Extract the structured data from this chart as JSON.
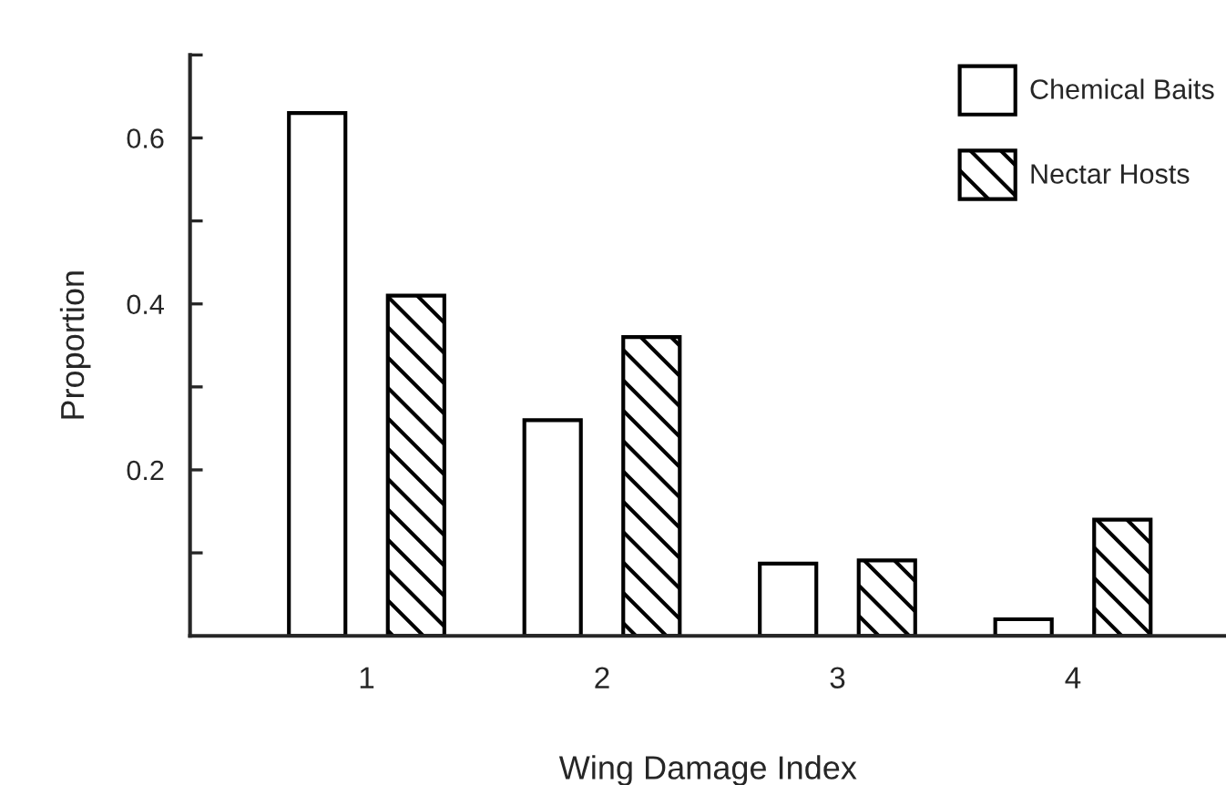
{
  "chart_data": {
    "type": "bar",
    "xlabel": "Wing Damage Index",
    "ylabel": "Proportion",
    "categories": [
      "1",
      "2",
      "3",
      "4"
    ],
    "series": [
      {
        "name": "Chemical Baits",
        "color": "#ffffff",
        "values": [
          0.63,
          0.26,
          0.087,
          0.02
        ]
      },
      {
        "name": "Nectar Hosts",
        "color": "#000000",
        "values": [
          0.41,
          0.36,
          0.091,
          0.14
        ]
      }
    ],
    "ylim": [
      0,
      0.7
    ],
    "yticks": [
      {
        "value": 0.1,
        "label": null
      },
      0.2,
      {
        "value": 0.3,
        "label": null
      },
      0.4,
      {
        "value": 0.5,
        "label": null
      },
      0.6,
      {
        "value": 0.7,
        "label": null
      }
    ],
    "grid": false,
    "legend": "top right"
  }
}
